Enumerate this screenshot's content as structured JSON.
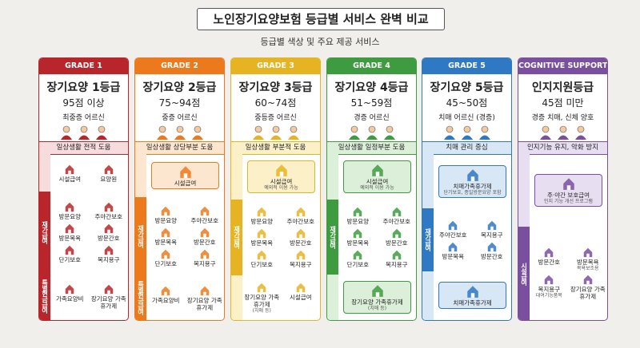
{
  "header": {
    "title": "노인장기요양보험 등급별 서비스 완벽 비교",
    "subtitle": "등급별 색상 및 주요 제공 서비스"
  },
  "columns": [
    {
      "grade": "GRADE 1",
      "name": "장기요양 1등급",
      "score": "95점 이상",
      "target": "최중증 어르신",
      "need": "일상생활 전적 도움",
      "groups": [
        {
          "items": [
            {
              "label": "시설급여"
            },
            {
              "label": "요양원"
            }
          ]
        },
        {
          "label": "재가급여",
          "items": [
            {
              "label": "방문요양"
            },
            {
              "label": "주야간보호"
            },
            {
              "label": "방문목욕"
            },
            {
              "label": "방문간호"
            },
            {
              "label": "단기보호"
            },
            {
              "label": "복지용구"
            }
          ]
        },
        {
          "label": "특별현금급여",
          "items": [
            {
              "label": "가족요양비"
            },
            {
              "label": "장기요양 가족휴가제"
            }
          ]
        }
      ]
    },
    {
      "grade": "GRADE 2",
      "name": "장기요양 2등급",
      "score": "75~94점",
      "target": "중증 어르신",
      "need": "일상생활 상당부분 도움",
      "groups": [
        {
          "items": [
            {
              "label": "시설급여"
            }
          ]
        },
        {
          "label": "재가급여",
          "items": [
            {
              "label": "방문요양"
            },
            {
              "label": "주야간보호"
            },
            {
              "label": "방문목욕"
            },
            {
              "label": "방문간호"
            },
            {
              "label": "단기보호"
            },
            {
              "label": "복지용구"
            }
          ]
        },
        {
          "label": "특별현금급여",
          "items": [
            {
              "label": "가족요양비"
            },
            {
              "label": "장기요양 가족휴가제"
            }
          ]
        }
      ]
    },
    {
      "grade": "GRADE 3",
      "name": "장기요양 3등급",
      "score": "60~74점",
      "target": "중등증 어르신",
      "need": "일상생활 부분적 도움",
      "groups": [
        {
          "items": [
            {
              "label": "시설급여",
              "sub": "예외적 이용 가능"
            }
          ]
        },
        {
          "label": "재가급여",
          "items": [
            {
              "label": "방문요양"
            },
            {
              "label": "주야간보호"
            },
            {
              "label": "방문목욕"
            },
            {
              "label": "방문간호"
            },
            {
              "label": "단기보호"
            },
            {
              "label": "복지용구"
            }
          ]
        },
        {
          "items": [
            {
              "label": "장기요양 가족휴가제",
              "sub": "(치매 등)"
            },
            {
              "label": "시설급여"
            }
          ]
        }
      ]
    },
    {
      "grade": "GRADE 4",
      "name": "장기요양 4등급",
      "score": "51~59점",
      "target": "경증 어르신",
      "need": "일상생활 일정부분 도움",
      "groups": [
        {
          "items": [
            {
              "label": "시설급여",
              "sub": "예외적 이용 가능"
            }
          ]
        },
        {
          "label": "재가급여",
          "items": [
            {
              "label": "방문요양"
            },
            {
              "label": "주야간보호"
            },
            {
              "label": "방문목욕"
            },
            {
              "label": "방문간호"
            },
            {
              "label": "단기보호"
            },
            {
              "label": "복지용구"
            }
          ]
        },
        {
          "items": [
            {
              "label": "장기요양 가족휴가제",
              "sub": "(치매 등)"
            }
          ]
        }
      ]
    },
    {
      "grade": "GRADE 5",
      "name": "장기요양 5등급",
      "score": "45~50점",
      "target": "치매 어르신 (경증)",
      "need": "치매 관리 중심",
      "groups": [
        {
          "items": [
            {
              "label": "치매가족휴가제",
              "sub": "단기보호, 종일방문요양 포함"
            }
          ]
        },
        {
          "label": "재가급여",
          "items": [
            {
              "label": "주야간보호"
            },
            {
              "label": "복지용구"
            },
            {
              "label": "방문목욕"
            },
            {
              "label": "방문간호"
            }
          ]
        },
        {
          "items": [
            {
              "label": "치매가족휴가제"
            }
          ]
        }
      ]
    },
    {
      "grade": "COGNITIVE SUPPORT",
      "name": "인지지원등급",
      "score": "45점 미만",
      "target": "경증 치매, 신체 양호",
      "need": "인지기능 유지, 악화 방지",
      "groups": [
        {
          "items": [
            {
              "label": "주·야간 보호급여",
              "sub": "인지 기능 개선 프로그램"
            }
          ]
        },
        {
          "label": "시설급여",
          "items": [
            {
              "label": "방문간호"
            },
            {
              "label": "방문목욕",
              "sub": "목욕보조용"
            },
            {
              "label": "복지용구",
              "sub": "대여기능품목"
            },
            {
              "label": "장기요양 가족휴가제"
            }
          ]
        }
      ]
    }
  ]
}
